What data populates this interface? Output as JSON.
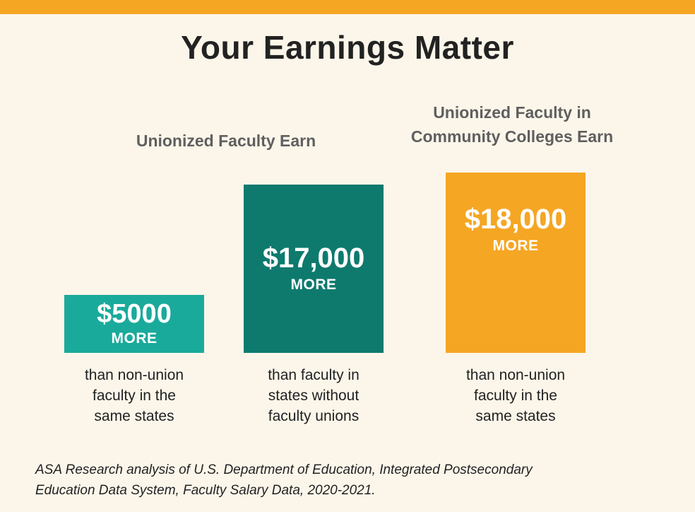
{
  "colors": {
    "background": "#fcf6ea",
    "accent_orange": "#f5a623",
    "teal_light": "#1aaa9b",
    "teal_dark": "#0e7a6e"
  },
  "title": "Your Earnings Matter",
  "group_labels": {
    "unionized": "Unionized Faculty Earn",
    "community_line1": "Unionized Faculty in",
    "community_line2": "Community Colleges Earn"
  },
  "chart_data": {
    "type": "bar",
    "categories": [
      "than non-union faculty in the same states",
      "than faculty in states without faculty unions",
      "than non-union faculty in the same states"
    ],
    "values": [
      5000,
      17000,
      18000
    ],
    "value_labels": [
      "$5000",
      "$17,000",
      "$18,000"
    ],
    "value_suffix": "MORE",
    "colors": [
      "#1aaa9b",
      "#0e7a6e",
      "#f5a623"
    ]
  },
  "captions": [
    [
      "than non-union",
      "faculty in the",
      "same states"
    ],
    [
      "than faculty in",
      "states without",
      "faculty unions"
    ],
    [
      "than non-union",
      "faculty in the",
      "same states"
    ]
  ],
  "source": {
    "line1": "ASA Research analysis of U.S. Department of Education, Integrated Postsecondary",
    "line2": "Education Data System, Faculty Salary Data, 2020-2021."
  }
}
